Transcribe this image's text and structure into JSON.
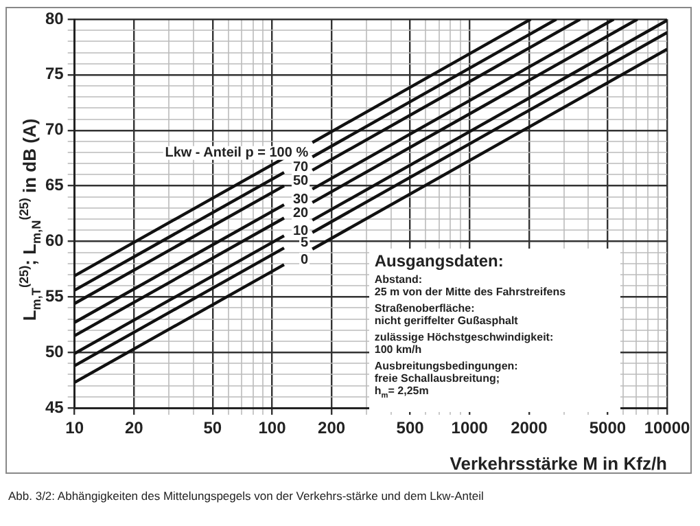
{
  "chart_data": {
    "type": "line",
    "ylabel": "L$_{m,T}$$^{(25)}$; L$_{m,N}$$^{(25)}$ in dB (A)",
    "xlabel": "Verkehrsstärke M in Kfz/h",
    "log": "x",
    "grid": true,
    "legend": false,
    "marker": "none",
    "line_style": "solid",
    "xlim": [
      10,
      10000
    ],
    "ylim": [
      45,
      80
    ],
    "xticks": [
      10,
      20,
      {
        "value": 30,
        "label": null
      },
      {
        "value": 40,
        "label": null
      },
      50,
      {
        "value": 60,
        "label": null
      },
      {
        "value": 70,
        "label": null
      },
      {
        "value": 80,
        "label": null
      },
      {
        "value": 90,
        "label": null
      },
      100,
      200,
      {
        "value": 300,
        "label": null
      },
      {
        "value": 400,
        "label": null
      },
      500,
      {
        "value": 600,
        "label": null
      },
      {
        "value": 700,
        "label": null
      },
      {
        "value": 800,
        "label": null
      },
      {
        "value": 900,
        "label": null
      },
      1000,
      2000,
      {
        "value": 3000,
        "label": null
      },
      {
        "value": 4000,
        "label": null
      },
      5000,
      {
        "value": 6000,
        "label": null
      },
      {
        "value": 7000,
        "label": null
      },
      {
        "value": 8000,
        "label": null
      },
      {
        "value": 9000,
        "label": null
      },
      10000
    ],
    "yticks": [
      45,
      {
        "value": 46,
        "label": null
      },
      {
        "value": 47,
        "label": null
      },
      {
        "value": 48,
        "label": null
      },
      {
        "value": 49,
        "label": null
      },
      50,
      {
        "value": 51,
        "label": null
      },
      {
        "value": 52,
        "label": null
      },
      {
        "value": 53,
        "label": null
      },
      {
        "value": 54,
        "label": null
      },
      55,
      {
        "value": 56,
        "label": null
      },
      {
        "value": 57,
        "label": null
      },
      {
        "value": 58,
        "label": null
      },
      {
        "value": 59,
        "label": null
      },
      60,
      {
        "value": 61,
        "label": null
      },
      {
        "value": 62,
        "label": null
      },
      {
        "value": 63,
        "label": null
      },
      {
        "value": 64,
        "label": null
      },
      65,
      {
        "value": 66,
        "label": null
      },
      {
        "value": 67,
        "label": null
      },
      {
        "value": 68,
        "label": null
      },
      {
        "value": 69,
        "label": null
      },
      70,
      {
        "value": 71,
        "label": null
      },
      {
        "value": 72,
        "label": null
      },
      {
        "value": 73,
        "label": null
      },
      {
        "value": 74,
        "label": null
      },
      75,
      {
        "value": 76,
        "label": null
      },
      {
        "value": 77,
        "label": null
      },
      {
        "value": 78,
        "label": null
      },
      {
        "value": 79,
        "label": null
      },
      80
    ],
    "series": [
      {
        "name": "Lkw - Anteil p = 100 %",
        "color": "#111111",
        "x": [
          10,
          115,
          130,
          160,
          2040
        ],
        "values": [
          56.9,
          67.5,
          null,
          68.9,
          80
        ]
      },
      {
        "name": "70",
        "color": "#111111",
        "x": [
          10,
          115,
          130,
          160,
          2750
        ],
        "values": [
          55.6,
          66.2,
          null,
          67.6,
          80
        ]
      },
      {
        "name": "50",
        "color": "#111111",
        "x": [
          10,
          115,
          130,
          160,
          3630
        ],
        "values": [
          54.4,
          65.0,
          null,
          66.4,
          80
        ]
      },
      {
        "name": "30",
        "color": "#111111",
        "x": [
          10,
          115,
          130,
          160,
          5370
        ],
        "values": [
          52.7,
          63.3,
          null,
          64.7,
          80
        ]
      },
      {
        "name": "20",
        "color": "#111111",
        "x": [
          10,
          115,
          130,
          160,
          7080
        ],
        "values": [
          51.5,
          62.1,
          null,
          63.5,
          80
        ]
      },
      {
        "name": "10",
        "color": "#111111",
        "x": [
          10,
          115,
          130,
          160,
          10000
        ],
        "values": [
          49.9,
          60.5,
          null,
          61.9,
          79.9
        ]
      },
      {
        "name": "5",
        "color": "#111111",
        "x": [
          10,
          115,
          130,
          160,
          10000
        ],
        "values": [
          48.8,
          59.4,
          null,
          60.8,
          78.8
        ]
      },
      {
        "name": "0",
        "color": "#111111",
        "x": [
          10,
          115,
          130,
          160,
          10000
        ],
        "values": [
          47.3,
          57.9,
          null,
          59.3,
          77.3
        ]
      }
    ],
    "annotations": [
      "Ausgangsdaten:",
      "Abstand:\n25 m von der Mitte des Fahrstreifens",
      "Straßenoberfläche:\nnicht geriffelter Gußasphalt",
      "zulässige Höchstgeschwindigkeit:\n100 km/h",
      "Ausbreitungsbedingungen:\nfreie Schallausbreitung;\nh$_{m}$= 2,25m",
      "Abb. 3/2: Abhängigkeiten des Mittelungspegels von der Verkehrs-stärke und dem Lkw-Anteil"
    ]
  }
}
